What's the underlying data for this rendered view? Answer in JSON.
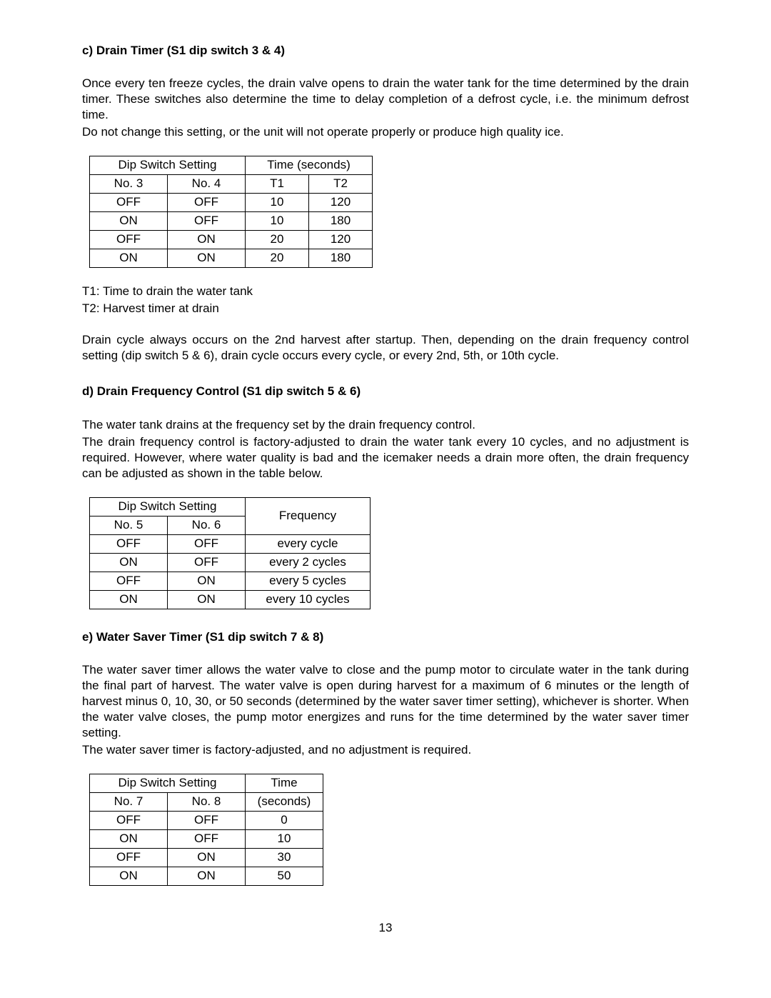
{
  "section_c": {
    "heading": "c) Drain Timer (S1 dip switch 3 & 4)",
    "para1": "Once every ten freeze cycles, the drain valve opens to drain the water tank for the time determined by the drain timer. These switches also determine the time to delay completion of a defrost cycle, i.e. the minimum defrost time.",
    "para2": "Do not change this setting, or the unit will not operate properly or produce high quality ice.",
    "table": {
      "header_dip": "Dip Switch Setting",
      "header_time": "Time (seconds)",
      "col1": "No. 3",
      "col2": "No. 4",
      "col3": "T1",
      "col4": "T2",
      "rows": [
        [
          "OFF",
          "OFF",
          "10",
          "120"
        ],
        [
          "ON",
          "OFF",
          "10",
          "180"
        ],
        [
          "OFF",
          "ON",
          "20",
          "120"
        ],
        [
          "ON",
          "ON",
          "20",
          "180"
        ]
      ]
    },
    "note1": "T1: Time to drain the water tank",
    "note2": "T2: Harvest timer at drain",
    "para3": "Drain cycle always occurs on the 2nd harvest after startup. Then, depending on the drain frequency control setting (dip switch 5 & 6), drain cycle occurs every cycle, or every 2nd, 5th, or 10th cycle."
  },
  "section_d": {
    "heading": "d) Drain Frequency Control (S1 dip switch 5 & 6)",
    "para1": "The water tank drains at the frequency set by the drain frequency control.",
    "para2": "The drain frequency control is factory-adjusted to drain the water tank every 10 cycles, and no adjustment is required. However, where water quality is bad and the icemaker needs a drain more often, the drain frequency can be adjusted as shown in the table below.",
    "table": {
      "header_dip": "Dip Switch Setting",
      "header_freq": "Frequency",
      "col1": "No. 5",
      "col2": "No. 6",
      "rows": [
        [
          "OFF",
          "OFF",
          "every cycle"
        ],
        [
          "ON",
          "OFF",
          "every 2 cycles"
        ],
        [
          "OFF",
          "ON",
          "every 5 cycles"
        ],
        [
          "ON",
          "ON",
          "every 10 cycles"
        ]
      ]
    }
  },
  "section_e": {
    "heading": "e) Water Saver Timer (S1 dip switch 7 & 8)",
    "para1": "The water saver timer allows the water valve to close and the pump motor to circulate water in the tank during the final part of harvest. The water valve is open during harvest for a maximum of 6 minutes or the length of harvest minus 0, 10, 30, or 50 seconds (determined by the water saver timer setting), whichever is shorter. When the water valve closes, the pump motor energizes and runs for the time determined by the water saver timer setting.",
    "para2": "The water saver timer is factory-adjusted, and no adjustment is required.",
    "table": {
      "header_dip": "Dip Switch Setting",
      "header_time_top": "Time",
      "header_time_bot": "(seconds)",
      "col1": "No. 7",
      "col2": "No. 8",
      "rows": [
        [
          "OFF",
          "OFF",
          "0"
        ],
        [
          "ON",
          "OFF",
          "10"
        ],
        [
          "OFF",
          "ON",
          "30"
        ],
        [
          "ON",
          "ON",
          "50"
        ]
      ]
    }
  },
  "page_number": "13"
}
